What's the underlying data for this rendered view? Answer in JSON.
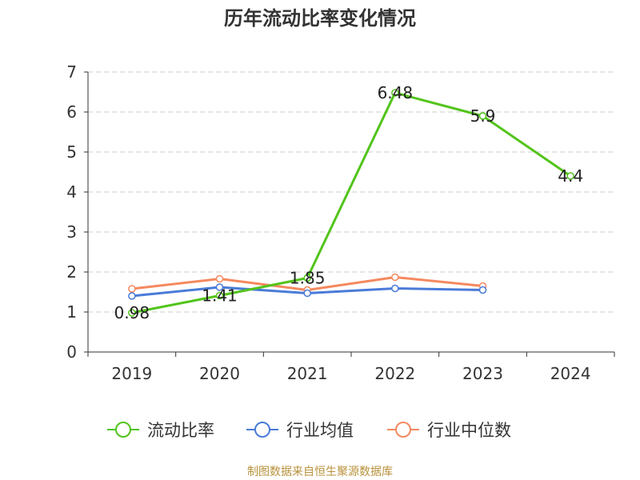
{
  "chart_data": {
    "type": "line",
    "title": "历年流动比率变化情况",
    "categories": [
      "2019",
      "2020",
      "2021",
      "2022",
      "2023",
      "2024"
    ],
    "ylim": [
      0,
      7
    ],
    "yticks": [
      0,
      1,
      2,
      3,
      4,
      5,
      6,
      7
    ],
    "grid": true,
    "legend_position": "bottom",
    "series": [
      {
        "name": "流动比率",
        "color": "#52c41a",
        "values": [
          0.98,
          1.41,
          1.85,
          6.48,
          5.9,
          4.4
        ],
        "labels": [
          "0.98",
          "1.41",
          "1.85",
          "6.48",
          "5.9",
          "4.4"
        ]
      },
      {
        "name": "行业均值",
        "color": "#4a7bd8",
        "values": [
          1.4,
          1.62,
          1.47,
          1.59,
          1.55,
          null
        ]
      },
      {
        "name": "行业中位数",
        "color": "#f4895f",
        "values": [
          1.58,
          1.83,
          1.55,
          1.87,
          1.65,
          null
        ]
      }
    ]
  },
  "footer": {
    "source": "制图数据来自恒生聚源数据库"
  }
}
